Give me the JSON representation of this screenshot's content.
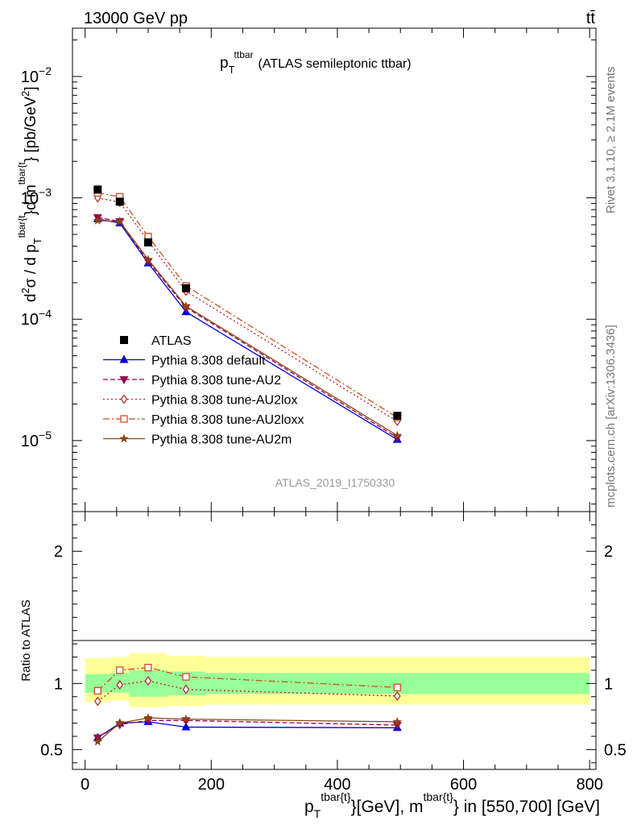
{
  "header": {
    "energy_label": "13000 GeV pp",
    "process_label": "tt̄"
  },
  "side_labels": {
    "rivet": "Rivet 3.1.10, ≥ 2.1M events",
    "mcplots": "mcplots.cern.ch [arXiv:1306.3436]"
  },
  "colors": {
    "ATLAS": "#000000",
    "default": "#0000dd",
    "AU2": "#99004d",
    "AU2lox": "#b22222",
    "AU2loxx": "#c8501e",
    "AU2m": "#8b4513",
    "band_inner": "#99ff99",
    "band_outer": "#ffff99"
  },
  "chart_data": [
    {
      "type": "line",
      "panel": "main",
      "title_main": "p",
      "title_sub": "T",
      "title_sup": "ttbar",
      "title_rest": "(ATLAS semileptonic ttbar)",
      "watermark": "ATLAS_2019_I1750330",
      "ylabel": "d²σ / d p_T^{tbar{t}}d m^{tbar{t}} [pb/GeV²]",
      "yscale": "log",
      "ylim": [
        2.6e-06,
        0.025
      ],
      "xlim": [
        -20,
        810
      ],
      "ytick_labels": [
        {
          "value": 1e-05,
          "base": "10",
          "exp": "−5"
        },
        {
          "value": 0.0001,
          "base": "10",
          "exp": "−4"
        },
        {
          "value": 0.001,
          "base": "10",
          "exp": "−3"
        },
        {
          "value": 0.01,
          "base": "10",
          "exp": "−2"
        }
      ],
      "x": [
        20,
        55,
        100,
        160,
        495
      ],
      "series": [
        {
          "key": "ATLAS",
          "name": "ATLAS",
          "style": "data",
          "marker": "square_filled",
          "values": [
            0.00117,
            0.00093,
            0.00043,
            0.00018,
            1.6e-05
          ]
        },
        {
          "key": "default",
          "name": "Pythia 8.308 default",
          "style": "solid",
          "marker": "triangle_up",
          "values": [
            0.00067,
            0.00062,
            0.00029,
            0.000115,
            1.02e-05
          ]
        },
        {
          "key": "AU2",
          "name": "Pythia 8.308 tune-AU2",
          "style": "dashed",
          "marker": "triangle_down",
          "values": [
            0.00069,
            0.00064,
            0.0003,
            0.000125,
            1.06e-05
          ]
        },
        {
          "key": "AU2lox",
          "name": "Pythia 8.308 tune-AU2lox",
          "style": "dotted",
          "marker": "diamond_open",
          "values": [
            0.001,
            0.00092,
            0.00044,
            0.00017,
            1.44e-05
          ]
        },
        {
          "key": "AU2loxx",
          "name": "Pythia 8.308 tune-AU2loxx",
          "style": "dashdot",
          "marker": "square_open",
          "values": [
            0.0011,
            0.00102,
            0.00048,
            0.000188,
            1.55e-05
          ]
        },
        {
          "key": "AU2m",
          "name": "Pythia 8.308 tune-AU2m",
          "style": "solid",
          "marker": "star",
          "values": [
            0.00065,
            0.00064,
            0.00031,
            0.000128,
            1.1e-05
          ]
        }
      ]
    },
    {
      "type": "line",
      "panel": "ratio",
      "ylabel": "Ratio to ATLAS",
      "ylim": [
        0.35,
        2.3
      ],
      "xlim": [
        -20,
        810
      ],
      "xlabel_p": "p",
      "xlabel_T": "T",
      "xlabel_sup1": "tbar{t}",
      "xlabel_mid": "}[GeV], m",
      "xlabel_sup2": "tbar{t}",
      "xlabel_end": "} in [550,700] [GeV]",
      "xticks": [
        0,
        200,
        400,
        600,
        800
      ],
      "xtick_labels": [
        "0",
        "200",
        "400",
        "600",
        "800"
      ],
      "yticks": [
        0.5,
        1,
        2
      ],
      "ytick_labels": [
        "0.5",
        "1",
        "2"
      ],
      "bands": [
        {
          "x0": 0,
          "x1": 40,
          "inner": [
            0.93,
            1.07
          ],
          "outer": [
            0.86,
            1.19
          ]
        },
        {
          "x0": 40,
          "x1": 70,
          "inner": [
            0.93,
            1.08
          ],
          "outer": [
            0.87,
            1.2
          ]
        },
        {
          "x0": 70,
          "x1": 130,
          "inner": [
            0.9,
            1.1
          ],
          "outer": [
            0.82,
            1.23
          ]
        },
        {
          "x0": 130,
          "x1": 190,
          "inner": [
            0.91,
            1.09
          ],
          "outer": [
            0.83,
            1.21
          ]
        },
        {
          "x0": 190,
          "x1": 800,
          "inner": [
            0.92,
            1.08
          ],
          "outer": [
            0.84,
            1.2
          ]
        }
      ],
      "x": [
        20,
        55,
        100,
        160,
        495
      ],
      "series": [
        {
          "key": "default",
          "style": "solid",
          "marker": "triangle_up",
          "values": [
            0.59,
            0.7,
            0.71,
            0.67,
            0.665
          ]
        },
        {
          "key": "AU2",
          "style": "dashed",
          "marker": "triangle_down",
          "values": [
            0.59,
            0.69,
            0.72,
            0.72,
            0.685
          ]
        },
        {
          "key": "AU2lox",
          "style": "dotted",
          "marker": "diamond_open",
          "values": [
            0.865,
            0.99,
            1.02,
            0.955,
            0.905
          ]
        },
        {
          "key": "AU2loxx",
          "style": "dashdot",
          "marker": "square_open",
          "values": [
            0.945,
            1.1,
            1.12,
            1.05,
            0.97
          ]
        },
        {
          "key": "AU2m",
          "style": "solid",
          "marker": "star",
          "values": [
            0.56,
            0.7,
            0.74,
            0.73,
            0.71
          ]
        }
      ]
    }
  ]
}
